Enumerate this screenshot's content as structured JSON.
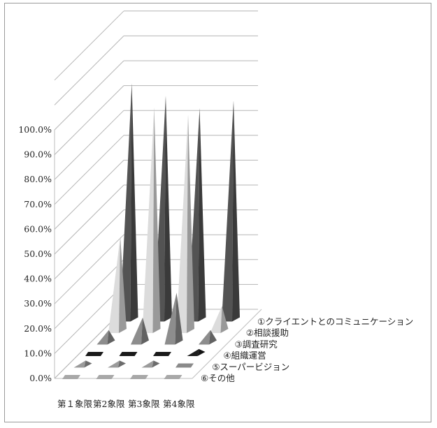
{
  "chart_data": {
    "type": "bar",
    "subtype": "3d-cone",
    "y_tick_labels": [
      "0.0%",
      "10.0%",
      "20.0%",
      "30.0%",
      "40.0%",
      "50.0%",
      "60.0%",
      "70.0%",
      "80.0%",
      "90.0%",
      "100.0%"
    ],
    "ylim": [
      0,
      100
    ],
    "grid": true,
    "categories": [
      "第１象限",
      "第2象限",
      "第3象限",
      "第4象限"
    ],
    "series": [
      {
        "name": "①クライエントとのコミュニケーション",
        "color": "#4a4a4a",
        "values": [
          95,
          90,
          85,
          88
        ]
      },
      {
        "name": "②相談援助",
        "color": "#c4c4c4",
        "values": [
          38,
          90,
          87,
          10
        ]
      },
      {
        "name": "③調査研究",
        "color": "#7e7e7e",
        "values": [
          5,
          10,
          20,
          5
        ]
      },
      {
        "name": "④組織運営",
        "color": "#1a1a1a",
        "values": [
          0.6,
          0.6,
          0.6,
          2
        ]
      },
      {
        "name": "⑤スーパービジョン",
        "color": "#8a8a8a",
        "values": [
          2,
          2,
          2,
          0.8
        ]
      },
      {
        "name": "⑥その他",
        "color": "#a8a8a8",
        "values": [
          0.5,
          0.5,
          0.5,
          0.5
        ]
      }
    ]
  }
}
